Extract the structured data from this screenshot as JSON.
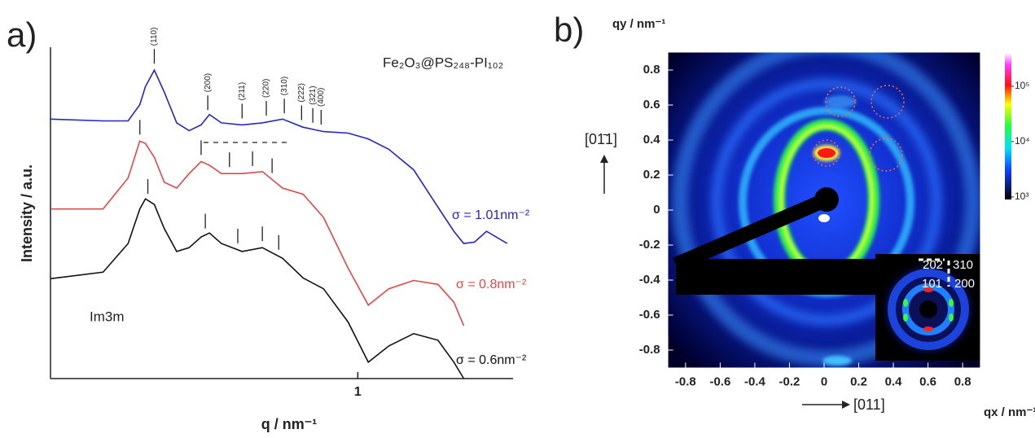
{
  "chart_data": [
    {
      "type": "line",
      "title": "a)",
      "xlabel": "q / nm⁻¹",
      "ylabel": "Intensity / a.u.",
      "xlog": true,
      "ylog": true,
      "xlim": [
        0.14,
        2.7
      ],
      "xticks": [
        1
      ],
      "ylim": [
        1,
        3400000
      ],
      "x": [
        0.14,
        0.196,
        0.23,
        0.248,
        0.257,
        0.272,
        0.29,
        0.314,
        0.34,
        0.367,
        0.387,
        0.418,
        0.477,
        0.543,
        0.618,
        0.705,
        0.803,
        0.94,
        1.07,
        1.22,
        1.43,
        1.67,
        1.85,
        1.97,
        2.11,
        2.28,
        2.6
      ],
      "series": [
        {
          "name": "σ = 1.01nm⁻²",
          "color": "#2525c8",
          "values": [
            130000,
            120000,
            120000,
            250000,
            570000,
            1200000,
            440000,
            110000,
            77000,
            100000,
            160000,
            110000,
            100000,
            110000,
            130000,
            90000,
            74000,
            69000,
            53000,
            33000,
            13000,
            2400,
            800,
            460,
            490,
            800,
            460
          ],
          "peaks": [
            {
              "label": "(110)",
              "x": 0.272
            },
            {
              "label": "(200)",
              "x": 0.383
            },
            {
              "label": "(211)",
              "x": 0.477
            },
            {
              "label": "(220)",
              "x": 0.557
            },
            {
              "label": "(310)",
              "x": 0.625
            },
            {
              "label": "(222)",
              "x": 0.698
            },
            {
              "label": "(321)",
              "x": 0.75
            },
            {
              "label": "(400)",
              "x": 0.791
            }
          ]
        },
        {
          "name": "σ = 0.8nm⁻²",
          "color": "#e04848",
          "values": [
            2200,
            2200,
            9000,
            48000,
            43000,
            23000,
            7400,
            5700,
            11000,
            19000,
            16000,
            11000,
            11000,
            12000,
            5700,
            4300,
            1500,
            150,
            28,
            59,
            86,
            72,
            32,
            11,
            null,
            null,
            null
          ],
          "peaks": [
            0.248,
            0.367,
            0.44,
            0.51,
            0.578
          ]
        },
        {
          "name": "σ = 0.6nm⁻²",
          "color": "#111111",
          "values": [
            93,
            125,
            460,
            2200,
            3500,
            2700,
            900,
            320,
            380,
            620,
            740,
            460,
            320,
            380,
            235,
            96,
            59,
            13,
            2.1,
            4.4,
            7.7,
            5.7,
            2.1,
            1.0,
            null,
            null,
            null
          ],
          "peaks": [
            0.261,
            0.377,
            0.464,
            0.543,
            0.603
          ]
        }
      ],
      "annotations": [
        "Fe₂O₃@PS₂₄₈-PI₁₀₂",
        "Im3m"
      ]
    },
    {
      "type": "heatmap",
      "title": "b)",
      "xlabel": "qx / nm⁻¹",
      "ylabel": "qy / nm⁻¹",
      "xlim": [
        -0.9,
        0.9
      ],
      "ylim": [
        -0.9,
        0.9
      ],
      "xticks": [
        -0.8,
        -0.6,
        -0.4,
        -0.2,
        0,
        0.2,
        0.4,
        0.6,
        0.8
      ],
      "yticks": [
        -0.8,
        -0.6,
        -0.4,
        -0.2,
        0,
        0.2,
        0.4,
        0.6,
        0.8
      ],
      "colorbar": {
        "log": true,
        "lim": [
          900,
          400000
        ],
        "ticks": [
          {
            "value": 100000,
            "label": "10⁵"
          },
          {
            "value": 10000,
            "label": "10⁴"
          },
          {
            "value": 1000,
            "label": "10³"
          }
        ]
      },
      "annotations": [
        "[011]",
        "[01̄1]"
      ],
      "inset_labels": [
        "202",
        "310",
        "101",
        "200"
      ]
    }
  ]
}
